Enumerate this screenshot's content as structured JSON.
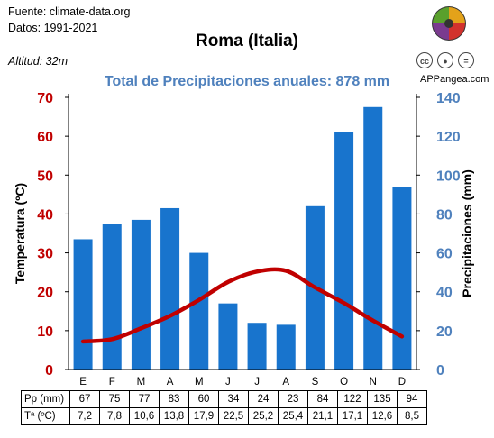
{
  "source_line": "Fuente: climate-data.org",
  "dates_line": "Datos: 1991-2021",
  "title": "Roma (Italia)",
  "altitude": "Altitud: 32m",
  "subtitle": "Total de Precipitaciones anuales: 878 mm",
  "brand": "APPangea.com",
  "license_icons": [
    "cc-icon",
    "attribution-icon",
    "equals-icon"
  ],
  "table": {
    "pp_label": "Pp (mm)",
    "t_label": "Tª (ºC)"
  },
  "chart_data": {
    "type": "bar",
    "categories": [
      "E",
      "F",
      "M",
      "A",
      "M",
      "J",
      "J",
      "A",
      "S",
      "O",
      "N",
      "D"
    ],
    "series": [
      {
        "name": "Pp (mm)",
        "type": "bar",
        "axis": "right",
        "color": "#1874cd",
        "values": [
          67,
          75,
          77,
          83,
          60,
          34,
          24,
          23,
          84,
          122,
          135,
          94
        ],
        "value_labels": [
          "67",
          "75",
          "77",
          "83",
          "60",
          "34",
          "24",
          "23",
          "84",
          "122",
          "135",
          "94"
        ]
      },
      {
        "name": "Tª (ºC)",
        "type": "line",
        "axis": "left",
        "color": "#c00000",
        "values": [
          7.2,
          7.8,
          10.6,
          13.8,
          17.9,
          22.5,
          25.2,
          25.4,
          21.1,
          17.1,
          12.6,
          8.5
        ],
        "value_labels": [
          "7,2",
          "7,8",
          "10,6",
          "13,8",
          "17,9",
          "22,5",
          "25,2",
          "25,4",
          "21,1",
          "17,1",
          "12,6",
          "8,5"
        ]
      }
    ],
    "y_left": {
      "label": "Temperatura (ºC)",
      "min": 0,
      "max": 70,
      "ticks": [
        0,
        10,
        20,
        30,
        40,
        50,
        60,
        70
      ],
      "color": "#c00000"
    },
    "y_right": {
      "label": "Precipitaciones (mm)",
      "min": 0,
      "max": 140,
      "ticks": [
        0,
        20,
        40,
        60,
        80,
        100,
        120,
        140
      ],
      "color": "#4f81bd"
    },
    "grid": false,
    "legend": "none"
  }
}
